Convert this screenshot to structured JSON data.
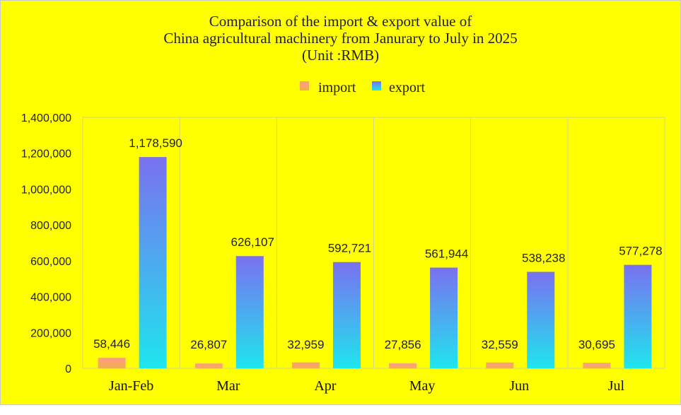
{
  "chart_data": {
    "type": "bar",
    "title_lines": [
      "Comparison of the import & export value of",
      "China agricultural machinery from Janurary to July in 2025",
      "(Unit :RMB)"
    ],
    "categories": [
      "Jan-Feb",
      "Mar",
      "Apr",
      "May",
      "Jun",
      "Jul"
    ],
    "series": [
      {
        "name": "import",
        "values": [
          58446,
          26807,
          32959,
          27856,
          32559,
          30695
        ],
        "labels": [
          "58,446",
          "26,807",
          "32,959",
          "27,856",
          "32,559",
          "30,695"
        ],
        "colors": [
          "#ff9a8a",
          "#f2b04a"
        ]
      },
      {
        "name": "export",
        "values": [
          1178590,
          626107,
          592721,
          561944,
          538238,
          577278
        ],
        "labels": [
          "1,178,590",
          "626,107",
          "592,721",
          "561,944",
          "538,238",
          "577,278"
        ],
        "colors": [
          "#7a70f0",
          "#1ee6ee"
        ]
      }
    ],
    "ylim": [
      0,
      1400000
    ],
    "yticks": [
      "0",
      "200,000",
      "400,000",
      "600,000",
      "800,000",
      "1,000,000",
      "1,200,000",
      "1,400,000"
    ],
    "legend_position": "top-center",
    "grid": "vertical category separators",
    "background": "#ffff00"
  }
}
